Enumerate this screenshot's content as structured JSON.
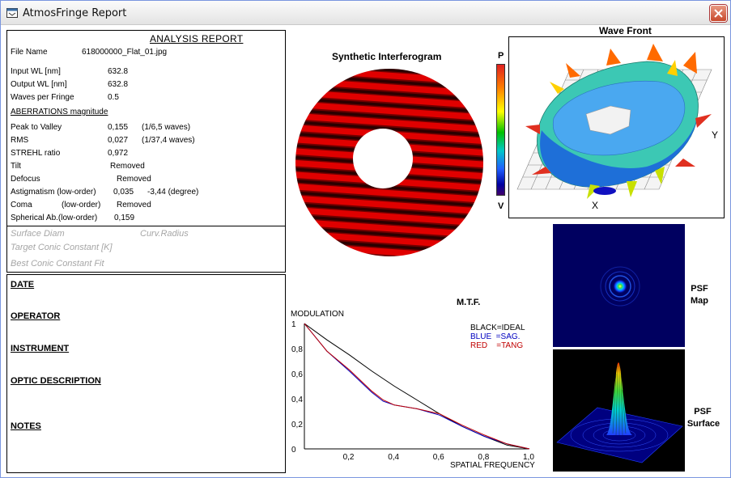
{
  "window": {
    "title": "AtmosFringe  Report"
  },
  "report": {
    "heading": "ANALYSIS  REPORT",
    "file_name_label": "File Name",
    "file_name": "618000000_Flat_01.jpg",
    "input_wl_label": "Input  WL [nm]",
    "input_wl": "632.8",
    "output_wl_label": "Output WL [nm]",
    "output_wl": "632.8",
    "waves_label": "Waves per Fringe",
    "waves": "0.5",
    "aberr_heading": "ABERRATIONS magnitude",
    "ptv_label": "Peak to Valley",
    "ptv": "0,155",
    "ptv_waves": "(1/6,5 waves)",
    "rms_label": "RMS",
    "rms": "0,027",
    "rms_waves": "(1/37,4 waves)",
    "strehl_label": "STREHL ratio",
    "strehl": "0,972",
    "tilt_label": "Tilt",
    "tilt": "Removed",
    "defocus_label": "Defocus",
    "defocus": "Removed",
    "astig_label": "Astigmatism  (low-order)",
    "astig": "0,035",
    "astig_deg": "-3,44  (degree)",
    "coma_label": "Coma",
    "coma_order": "(low-order)",
    "coma": "Removed",
    "spherical_label": "Spherical Ab.(low-order)",
    "spherical": "0,159",
    "surface_diam": "Surface Diam",
    "curv_radius": "Curv.Radius",
    "target_conic": "Target Conic Constant [K]",
    "best_conic": "Best Conic Constant Fit"
  },
  "info": {
    "date": "DATE",
    "operator": "OPERATOR",
    "instrument": "INSTRUMENT",
    "optic": "OPTIC DESCRIPTION",
    "notes": "NOTES"
  },
  "interferogram": {
    "title": "Synthetic Interferogram"
  },
  "scale": {
    "top": "P",
    "bottom": "V"
  },
  "wavefront": {
    "title": "Wave Front",
    "x_label": "X",
    "y_label": "Y"
  },
  "mtf": {
    "title": "M.T.F.",
    "ylabel": "MODULATION",
    "xlabel": "SPATIAL FREQUENCY",
    "legend": [
      "BLACK=IDEAL",
      "BLUE  =SAG.",
      "RED    =TANG"
    ],
    "legend_colors": [
      "#000000",
      "#0000c0",
      "#c00000"
    ]
  },
  "psf": {
    "map_label_1": "PSF",
    "map_label_2": "Map",
    "surface_label_1": "PSF",
    "surface_label_2": "Surface"
  },
  "chart_data": {
    "type": "line",
    "title": "M.T.F.",
    "xlabel": "SPATIAL FREQUENCY",
    "ylabel": "MODULATION",
    "xlim": [
      0,
      1.0
    ],
    "ylim": [
      0,
      1
    ],
    "x_ticks": [
      "0,2",
      "0,4",
      "0,6",
      "0,8",
      "1,0"
    ],
    "y_ticks": [
      "0",
      "0,2",
      "0,4",
      "0,6",
      "0,8",
      "1"
    ],
    "series": [
      {
        "name": "IDEAL",
        "color": "#000000",
        "x": [
          0,
          0.1,
          0.2,
          0.3,
          0.4,
          0.5,
          0.6,
          0.7,
          0.8,
          0.9,
          1.0
        ],
        "y": [
          1,
          0.87,
          0.75,
          0.62,
          0.5,
          0.39,
          0.28,
          0.18,
          0.1,
          0.03,
          0
        ]
      },
      {
        "name": "SAG.",
        "color": "#0000c0",
        "x": [
          0,
          0.1,
          0.2,
          0.3,
          0.35,
          0.4,
          0.5,
          0.6,
          0.7,
          0.8,
          0.9,
          1.0
        ],
        "y": [
          1,
          0.78,
          0.62,
          0.45,
          0.38,
          0.35,
          0.32,
          0.27,
          0.18,
          0.1,
          0.04,
          0
        ]
      },
      {
        "name": "TANG",
        "color": "#c00000",
        "x": [
          0,
          0.1,
          0.2,
          0.3,
          0.35,
          0.4,
          0.5,
          0.6,
          0.7,
          0.8,
          0.9,
          1.0
        ],
        "y": [
          1,
          0.78,
          0.63,
          0.46,
          0.39,
          0.35,
          0.32,
          0.28,
          0.19,
          0.11,
          0.04,
          0
        ]
      }
    ]
  }
}
